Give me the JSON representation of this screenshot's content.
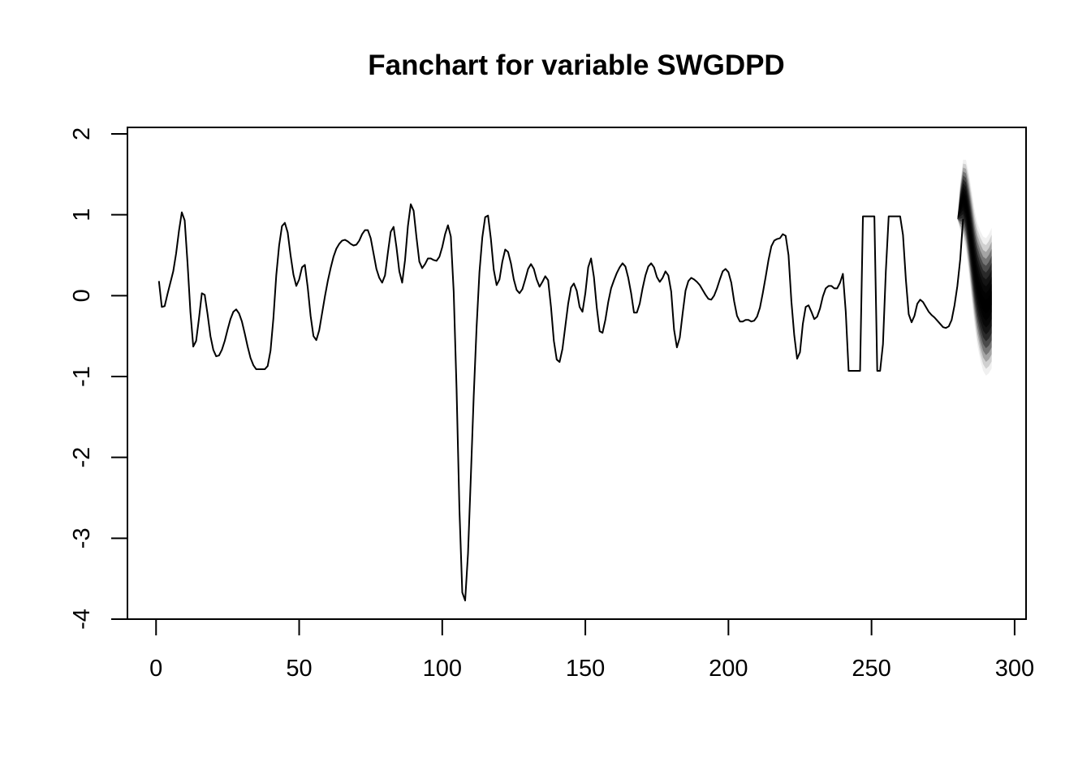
{
  "chart_data": {
    "type": "line",
    "title": "Fanchart for variable SWGDPD",
    "xlabel": "",
    "ylabel": "",
    "xlim": [
      -10,
      304
    ],
    "ylim": [
      -4,
      2.08
    ],
    "x_ticks": [
      0,
      50,
      100,
      150,
      200,
      250,
      300
    ],
    "y_ticks": [
      -4,
      -3,
      -2,
      -1,
      0,
      1,
      2
    ],
    "x_tick_labels": [
      "0",
      "50",
      "100",
      "150",
      "200",
      "250",
      "300"
    ],
    "y_tick_labels": [
      "-4",
      "-3",
      "-2",
      "-1",
      "0",
      "1",
      "2"
    ],
    "grid": false,
    "legend": "none",
    "line_color": "#000000",
    "fan_color": "#000000",
    "series": [
      {
        "values": [
          0.18,
          -0.14,
          -0.13,
          0.02,
          0.16,
          0.3,
          0.52,
          0.8,
          1.03,
          0.93,
          0.4,
          -0.2,
          -0.63,
          -0.56,
          -0.28,
          0.03,
          0.01,
          -0.23,
          -0.5,
          -0.67,
          -0.75,
          -0.74,
          -0.67,
          -0.56,
          -0.42,
          -0.29,
          -0.2,
          -0.17,
          -0.22,
          -0.32,
          -0.47,
          -0.63,
          -0.77,
          -0.86,
          -0.91,
          -0.91,
          -0.91,
          -0.91,
          -0.87,
          -0.68,
          -0.28,
          0.25,
          0.62,
          0.86,
          0.9,
          0.78,
          0.5,
          0.26,
          0.12,
          0.2,
          0.35,
          0.38,
          0.1,
          -0.25,
          -0.5,
          -0.55,
          -0.43,
          -0.22,
          -0.01,
          0.18,
          0.34,
          0.48,
          0.58,
          0.64,
          0.68,
          0.69,
          0.67,
          0.64,
          0.62,
          0.63,
          0.68,
          0.76,
          0.81,
          0.81,
          0.71,
          0.52,
          0.33,
          0.22,
          0.16,
          0.25,
          0.53,
          0.79,
          0.85,
          0.6,
          0.3,
          0.16,
          0.44,
          0.86,
          1.13,
          1.05,
          0.72,
          0.42,
          0.34,
          0.39,
          0.46,
          0.46,
          0.44,
          0.43,
          0.48,
          0.6,
          0.76,
          0.87,
          0.73,
          0.05,
          -1.15,
          -2.64,
          -3.67,
          -3.77,
          -3.19,
          -2.23,
          -1.24,
          -0.39,
          0.29,
          0.72,
          0.97,
          0.99,
          0.7,
          0.32,
          0.13,
          0.2,
          0.42,
          0.57,
          0.54,
          0.4,
          0.2,
          0.07,
          0.03,
          0.08,
          0.2,
          0.33,
          0.39,
          0.33,
          0.2,
          0.11,
          0.17,
          0.24,
          0.19,
          -0.14,
          -0.56,
          -0.79,
          -0.82,
          -0.66,
          -0.38,
          -0.1,
          0.1,
          0.15,
          0.06,
          -0.14,
          -0.2,
          0.03,
          0.35,
          0.46,
          0.23,
          -0.15,
          -0.44,
          -0.46,
          -0.3,
          -0.08,
          0.09,
          0.19,
          0.28,
          0.35,
          0.4,
          0.36,
          0.22,
          0.03,
          -0.21,
          -0.21,
          -0.1,
          0.09,
          0.25,
          0.36,
          0.4,
          0.35,
          0.23,
          0.17,
          0.22,
          0.3,
          0.25,
          0.05,
          -0.42,
          -0.64,
          -0.52,
          -0.22,
          0.06,
          0.18,
          0.22,
          0.2,
          0.17,
          0.13,
          0.07,
          0.01,
          -0.04,
          -0.05,
          0.0,
          0.09,
          0.2,
          0.3,
          0.33,
          0.29,
          0.16,
          -0.07,
          -0.25,
          -0.32,
          -0.32,
          -0.3,
          -0.3,
          -0.32,
          -0.31,
          -0.26,
          -0.15,
          0.03,
          0.23,
          0.44,
          0.61,
          0.68,
          0.7,
          0.71,
          0.76,
          0.74,
          0.5,
          -0.07,
          -0.49,
          -0.78,
          -0.7,
          -0.35,
          -0.14,
          -0.12,
          -0.2,
          -0.29,
          -0.26,
          -0.16,
          -0.01,
          0.09,
          0.12,
          0.12,
          0.09,
          0.09,
          0.16,
          0.27,
          -0.2,
          -0.93,
          -0.93,
          -0.93,
          -0.93,
          -0.93,
          0.98,
          0.98,
          0.98,
          0.98,
          0.98,
          -0.93,
          -0.93,
          -0.6,
          0.3,
          0.98,
          0.98,
          0.98,
          0.98,
          0.98,
          0.75,
          0.2,
          -0.23,
          -0.33,
          -0.25,
          -0.1,
          -0.05,
          -0.08,
          -0.14,
          -0.2,
          -0.24,
          -0.27,
          -0.31,
          -0.35,
          -0.39,
          -0.4,
          -0.38,
          -0.3,
          -0.12,
          0.12,
          0.45,
          0.95
        ],
        "x_start": 1
      }
    ],
    "fan": {
      "x": [
        280,
        281,
        282,
        283,
        284,
        285,
        286,
        287,
        288,
        289,
        290,
        291,
        292
      ],
      "center": [
        0.95,
        1.1,
        1.2,
        1.12,
        0.9,
        0.62,
        0.35,
        0.14,
        0.0,
        -0.1,
        -0.14,
        -0.1,
        -0.03
      ],
      "half_width_outer": [
        0.0,
        0.3,
        0.48,
        0.56,
        0.62,
        0.68,
        0.72,
        0.76,
        0.8,
        0.83,
        0.85,
        0.86,
        0.87
      ],
      "bands": 10
    }
  }
}
